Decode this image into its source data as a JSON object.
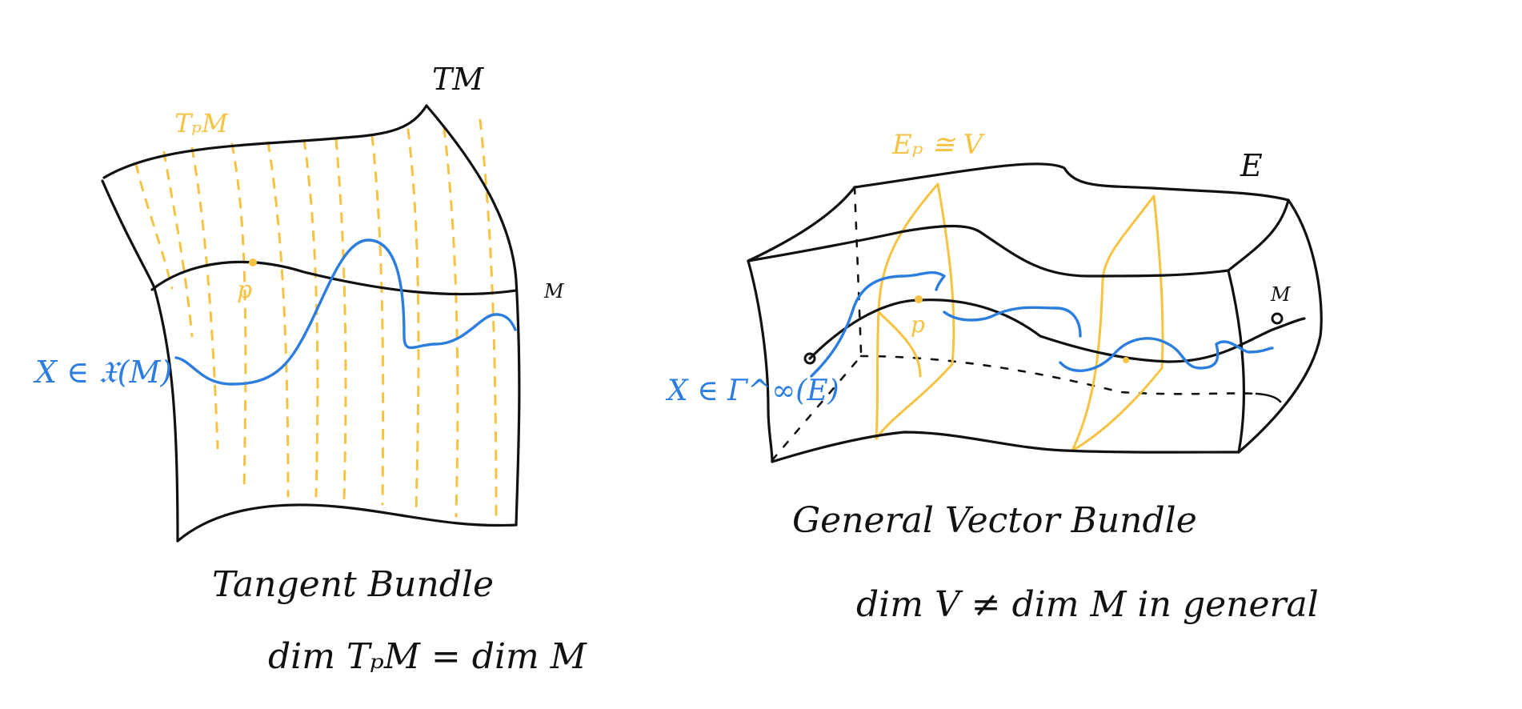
{
  "colors": {
    "ink": "#111111",
    "fiber": "#f5c242",
    "section": "#2b7de0",
    "background": "#ffffff"
  },
  "tangent": {
    "total_space_label": "TM",
    "fiber_label": "TₚM",
    "base_label": "M",
    "point_label": "p",
    "field_label": "X ∈ 𝔛(M)",
    "caption": "Tangent Bundle",
    "dimension_note": "dim TₚM = dim M"
  },
  "vector": {
    "total_space_label": "E",
    "fiber_label": "Eₚ ≅ V",
    "base_label": "M",
    "point_label": "p",
    "section_label": "X ∈ Γ^∞(E)",
    "caption": "General Vector Bundle",
    "dimension_note": "dim V ≠ dim M in general"
  }
}
